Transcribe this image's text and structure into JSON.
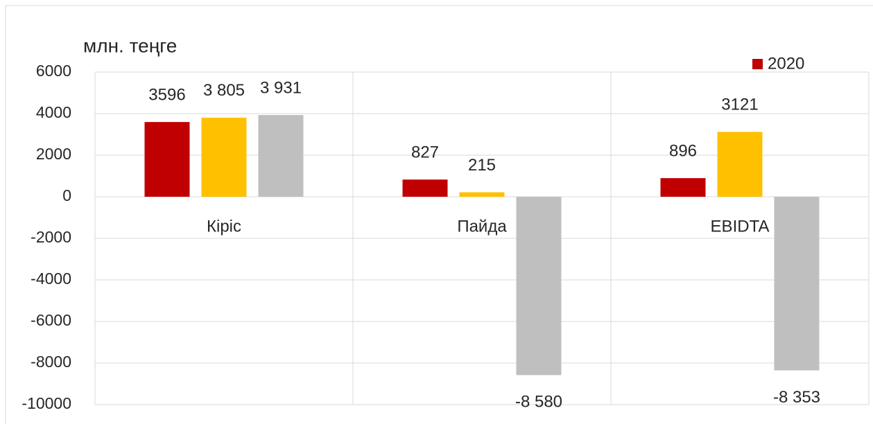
{
  "chart_data": {
    "type": "bar",
    "y_axis_label": "млн. теңге",
    "categories": [
      "Кіріс",
      "Пайда",
      "EBIDTA"
    ],
    "series": [
      {
        "name": "2020",
        "color": "#c00000",
        "values": [
          3596,
          827,
          896
        ],
        "value_labels": [
          "3596",
          "827",
          "896"
        ]
      },
      {
        "color": "#ffc000",
        "values": [
          3805,
          215,
          3121
        ],
        "value_labels": [
          "3 805",
          "215",
          "3121"
        ]
      },
      {
        "color": "#bfbfbf",
        "values": [
          3931,
          -8580,
          -8353
        ],
        "value_labels": [
          "3 931",
          "-8 580",
          "-8 353"
        ]
      }
    ],
    "ylim": [
      -10000,
      6000
    ],
    "yticks": [
      -10000,
      -8000,
      -6000,
      -4000,
      -2000,
      0,
      2000,
      4000,
      6000
    ],
    "grid": true,
    "legend": "top-right"
  }
}
